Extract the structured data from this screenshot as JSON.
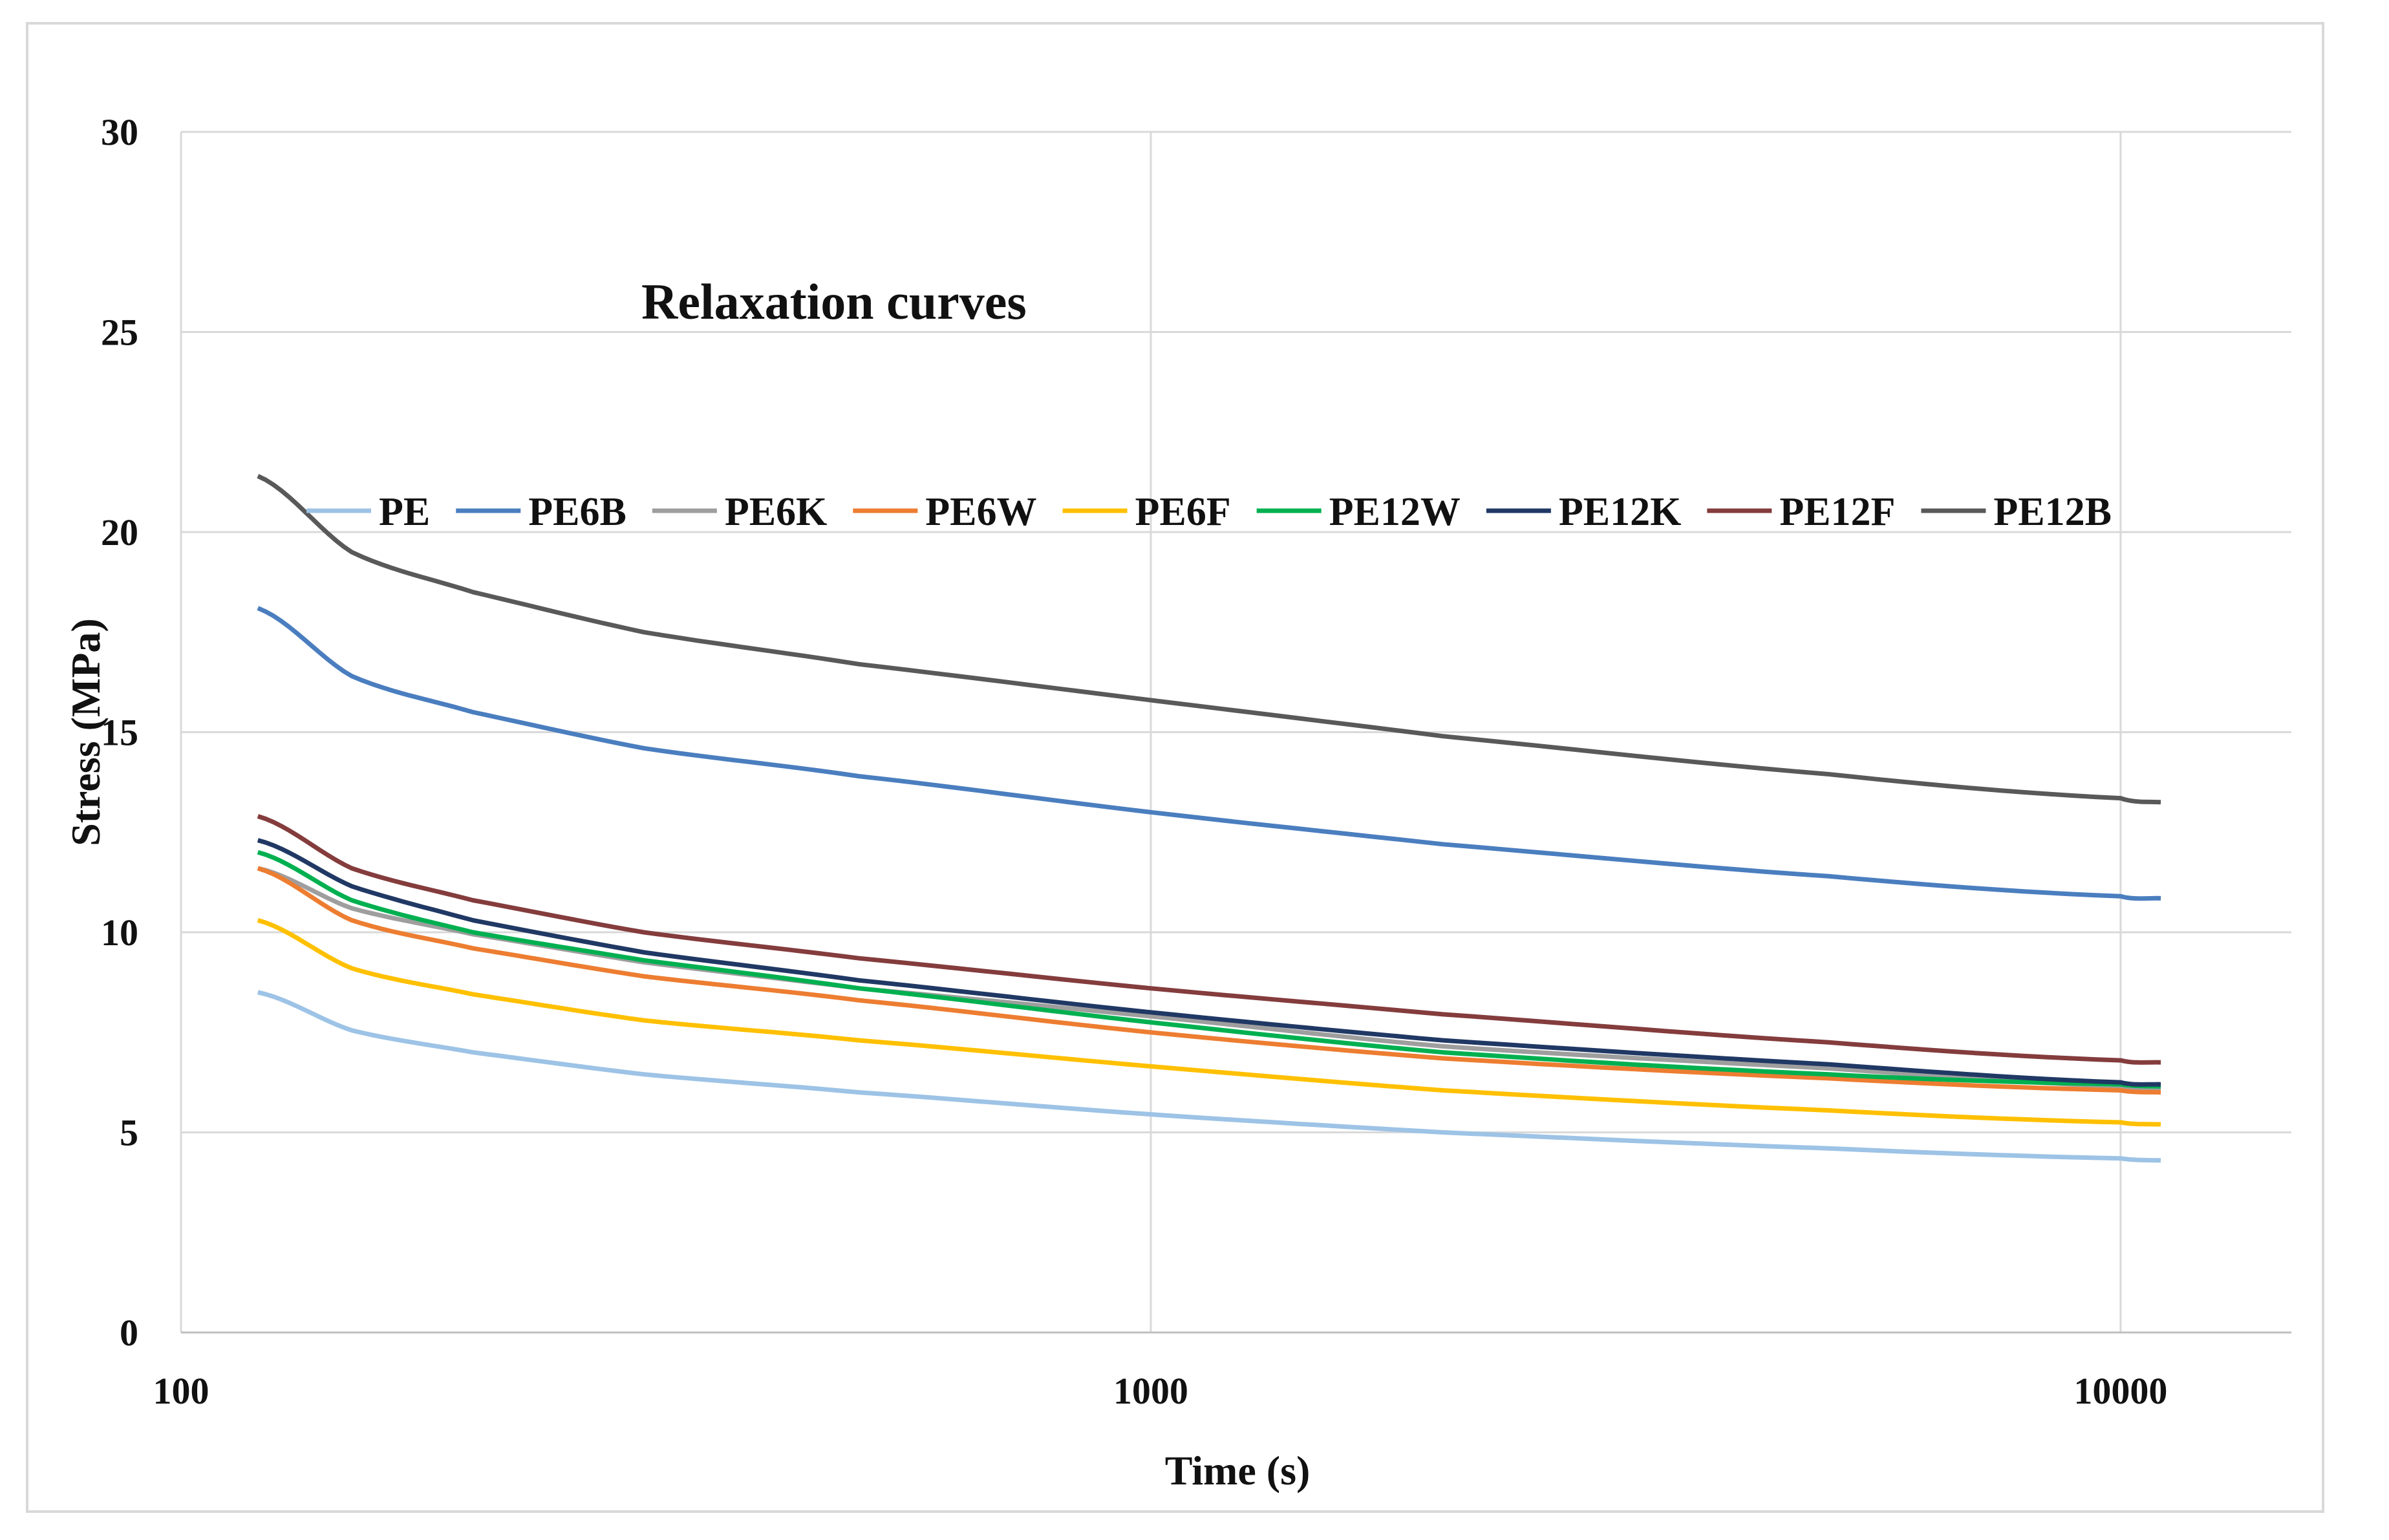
{
  "chart_data": {
    "type": "line",
    "title": "Relaxation curves",
    "xlabel": "Time (s)",
    "ylabel": "Stress (MPa)",
    "xscale": "log",
    "xlim": [
      100,
      15000
    ],
    "ylim": [
      0,
      30
    ],
    "grid": true,
    "legend_position": "top",
    "x_ticks": [
      100,
      1000,
      10000
    ],
    "x_tick_labels": [
      "100",
      "1000",
      "10000"
    ],
    "y_ticks": [
      0,
      5,
      10,
      15,
      20,
      25,
      30
    ],
    "y_tick_labels": [
      "0",
      "5",
      "10",
      "15",
      "20",
      "25",
      "30"
    ],
    "x": [
      120,
      150,
      200,
      300,
      500,
      1000,
      2000,
      5000,
      10000,
      11000
    ],
    "series": [
      {
        "name": "PE",
        "color": "#9dc3e6",
        "values": [
          8.5,
          7.55,
          7.0,
          6.45,
          6.0,
          5.45,
          5.0,
          4.6,
          4.35,
          4.3
        ]
      },
      {
        "name": "PE6B",
        "color": "#4a7ebf",
        "values": [
          18.1,
          16.4,
          15.5,
          14.6,
          13.9,
          13.0,
          12.2,
          11.4,
          10.9,
          10.85
        ]
      },
      {
        "name": "PE6K",
        "color": "#9e9e9e",
        "values": [
          11.6,
          10.6,
          9.95,
          9.25,
          8.6,
          7.9,
          7.15,
          6.6,
          6.15,
          6.1
        ]
      },
      {
        "name": "PE6W",
        "color": "#ed7d31",
        "values": [
          11.6,
          10.3,
          9.6,
          8.9,
          8.3,
          7.5,
          6.85,
          6.35,
          6.05,
          6.0
        ]
      },
      {
        "name": "PE6F",
        "color": "#ffc000",
        "values": [
          10.3,
          9.1,
          8.45,
          7.8,
          7.3,
          6.65,
          6.05,
          5.55,
          5.25,
          5.2
        ]
      },
      {
        "name": "PE12W",
        "color": "#00b050",
        "values": [
          12.0,
          10.8,
          10.0,
          9.3,
          8.6,
          7.75,
          7.0,
          6.45,
          6.2,
          6.15
        ]
      },
      {
        "name": "PE12K",
        "color": "#203864",
        "values": [
          12.3,
          11.15,
          10.3,
          9.5,
          8.8,
          8.0,
          7.3,
          6.7,
          6.25,
          6.2
        ]
      },
      {
        "name": "PE12F",
        "color": "#843c3c",
        "values": [
          12.9,
          11.6,
          10.8,
          10.0,
          9.35,
          8.6,
          7.95,
          7.25,
          6.8,
          6.75
        ]
      },
      {
        "name": "PE12B",
        "color": "#595959",
        "values": [
          21.4,
          19.5,
          18.5,
          17.5,
          16.7,
          15.8,
          14.9,
          13.95,
          13.35,
          13.25
        ]
      }
    ]
  }
}
